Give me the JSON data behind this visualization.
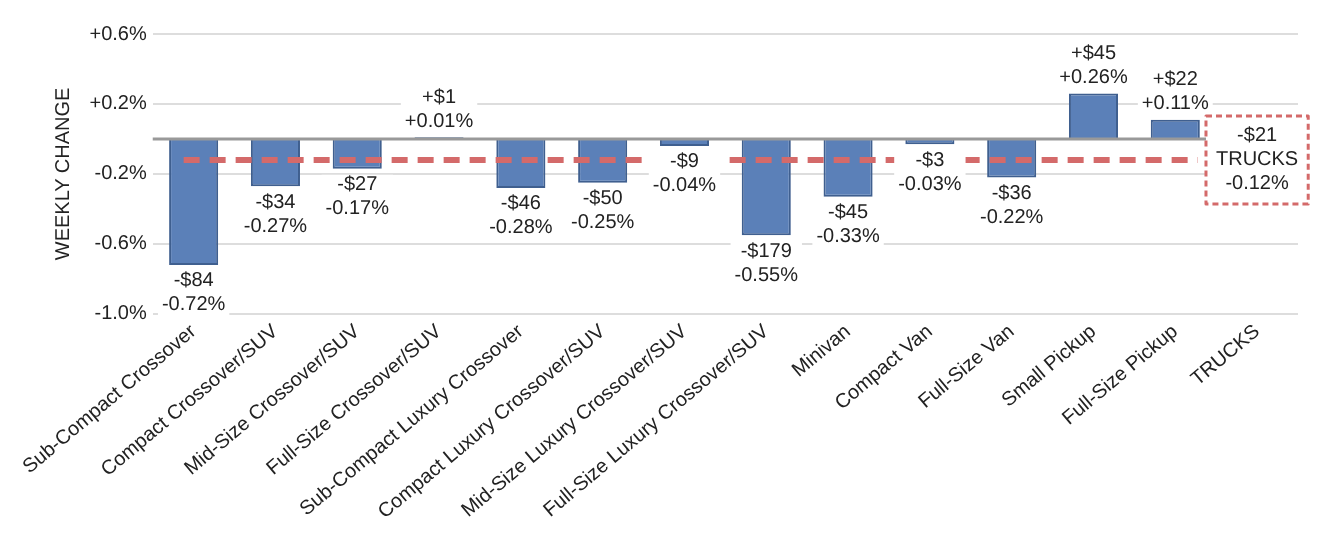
{
  "chart_data": {
    "type": "bar",
    "ylabel": "WEEKLY CHANGE",
    "categories": [
      "Sub-Compact Crossover",
      "Compact Crossover/SUV",
      "Mid-Size Crossover/SUV",
      "Full-Size Crossover/SUV",
      "Sub-Compact Luxury Crossover",
      "Compact Luxury Crossover/SUV",
      "Mid-Size Luxury Crossover/SUV",
      "Full-Size Luxury Crossover/SUV",
      "Minivan",
      "Compact Van",
      "Full-Size Van",
      "Small Pickup",
      "Full-Size Pickup",
      "TRUCKS"
    ],
    "values": [
      -0.72,
      -0.27,
      -0.17,
      0.01,
      -0.28,
      -0.25,
      -0.04,
      -0.55,
      -0.33,
      -0.03,
      -0.22,
      0.26,
      0.11,
      null
    ],
    "value_labels": [
      "-$84\n-0.72%",
      "-$34\n-0.27%",
      "-$27\n-0.17%",
      "+$1\n+0.01%",
      "-$46\n-0.28%",
      "-$50\n-0.25%",
      "-$9\n-0.04%",
      "-$179\n-0.55%",
      "-$45\n-0.33%",
      "-$3\n-0.03%",
      "-$36\n-0.22%",
      "+$45\n+0.26%",
      "+$22\n+0.11%",
      null
    ],
    "color": "#5b80b8",
    "ylim": [
      -1.0,
      0.6
    ],
    "yticks": [
      {
        "value": -1.0,
        "label": "-1.0%"
      },
      {
        "value": -0.6,
        "label": "-0.6%"
      },
      {
        "value": -0.2,
        "label": "-0.2%"
      },
      {
        "value": 0.2,
        "label": "+0.2%"
      },
      {
        "value": 0.6,
        "label": "+0.6%"
      }
    ],
    "grid": "y",
    "ref_lines": [
      {
        "axis": "y",
        "value": -0.12,
        "color": "#d46a6a",
        "line_style": "dashed"
      }
    ],
    "annotations": [
      "-$21\nTRUCKS\n-0.12%"
    ]
  }
}
